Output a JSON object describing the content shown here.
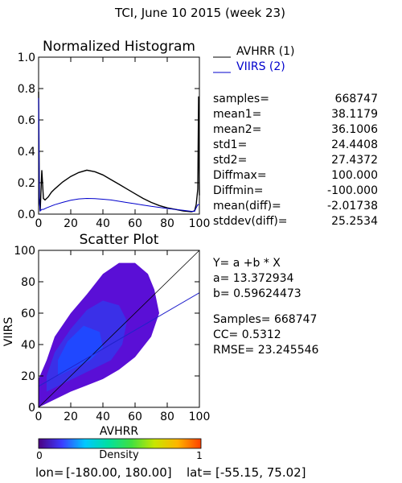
{
  "page_title": "TCI,  June 10 2015 (week 23)",
  "footer": {
    "lon_label": "lon=",
    "lon_range": "[-180.00, 180.00]",
    "lat_label": "lat=",
    "lat_range": "[-55.15, 75.02]"
  },
  "colors": {
    "avhrr": "#000000",
    "viirs": "#0000cc",
    "one_to_one": "#000000",
    "fit_line": "#2222cc"
  },
  "stats": [
    {
      "key": "samples=",
      "value": "668747"
    },
    {
      "key": "mean1=",
      "value": "38.1179"
    },
    {
      "key": "mean2=",
      "value": "36.1006"
    },
    {
      "key": "std1=",
      "value": "24.4408"
    },
    {
      "key": "std2=",
      "value": "27.4372"
    },
    {
      "key": "Diffmax=",
      "value": "100.000"
    },
    {
      "key": "Diffmin=",
      "value": "-100.000"
    },
    {
      "key": "mean(diff)=",
      "value": "-2.01738"
    },
    {
      "key": "stddev(diff)=",
      "value": "25.2534"
    }
  ],
  "regression": {
    "equation": "Y= a +b * X",
    "a": "a= 13.372934",
    "b": "b= 0.59624473",
    "samples": "Samples= 668747",
    "cc": "CC=  0.5312",
    "rmse": "RMSE= 23.245546"
  },
  "colorbar": {
    "label": "Density",
    "min_label": "0",
    "max_label": "1",
    "colors": [
      "#4b0082",
      "#3c3cff",
      "#00c8ff",
      "#00e0a0",
      "#40e040",
      "#c8e600",
      "#ffb400",
      "#ff4000"
    ]
  },
  "chart_data": [
    {
      "type": "line",
      "title": "Normalized Histogram",
      "xlim": [
        0,
        100
      ],
      "ylim": [
        0,
        1
      ],
      "xticks": [
        "0",
        "20",
        "40",
        "60",
        "80",
        "100"
      ],
      "yticks": [
        "0.0",
        "0.2",
        "0.4",
        "0.6",
        "0.8",
        "1.0"
      ],
      "legend_position": "right",
      "series": [
        {
          "name": "AVHRR (1)",
          "color": "#000000",
          "x": [
            0,
            0.5,
            1,
            2,
            3,
            4,
            6,
            8,
            10,
            15,
            20,
            25,
            30,
            35,
            40,
            45,
            50,
            55,
            60,
            65,
            70,
            75,
            80,
            85,
            90,
            95,
            97,
            98,
            99,
            99.5,
            100
          ],
          "y": [
            0.78,
            0.1,
            0.02,
            0.28,
            0.1,
            0.09,
            0.11,
            0.14,
            0.16,
            0.205,
            0.24,
            0.265,
            0.28,
            0.27,
            0.25,
            0.22,
            0.19,
            0.16,
            0.13,
            0.1,
            0.075,
            0.055,
            0.04,
            0.03,
            0.02,
            0.015,
            0.02,
            0.06,
            0.16,
            0.75,
            0.12
          ]
        },
        {
          "name": "VIIRS (2)",
          "color": "#0000cc",
          "x": [
            0,
            0.5,
            1,
            2,
            3,
            5,
            10,
            15,
            20,
            25,
            30,
            35,
            40,
            45,
            50,
            55,
            60,
            65,
            70,
            75,
            80,
            85,
            90,
            95,
            97,
            98,
            99,
            99.5,
            100
          ],
          "y": [
            0.74,
            0.08,
            0.02,
            0.03,
            0.03,
            0.04,
            0.06,
            0.075,
            0.088,
            0.097,
            0.1,
            0.099,
            0.095,
            0.09,
            0.082,
            0.074,
            0.066,
            0.058,
            0.05,
            0.043,
            0.036,
            0.03,
            0.024,
            0.018,
            0.018,
            0.04,
            0.06,
            0.06,
            0.06
          ]
        }
      ]
    },
    {
      "type": "scatter",
      "title": "Scatter Plot",
      "xlabel": "AVHRR",
      "ylabel": "VIIRS",
      "xlim": [
        0,
        100
      ],
      "ylim": [
        0,
        100
      ],
      "xticks": [
        "0",
        "20",
        "40",
        "60",
        "80",
        "100"
      ],
      "yticks": [
        "0",
        "20",
        "40",
        "60",
        "80",
        "100"
      ],
      "density_clusters": [
        {
          "level": "low",
          "x": [
            0,
            10,
            20,
            30,
            40,
            50,
            60,
            70,
            75,
            72,
            68,
            60,
            50,
            40,
            30,
            20,
            10,
            5,
            0,
            0
          ],
          "y": [
            0,
            5,
            10,
            14,
            18,
            24,
            32,
            45,
            60,
            75,
            85,
            92,
            92,
            85,
            72,
            60,
            45,
            30,
            18,
            0
          ]
        },
        {
          "level": "mid",
          "x": [
            5,
            15,
            25,
            35,
            45,
            52,
            55,
            50,
            40,
            30,
            20,
            10,
            5
          ],
          "y": [
            10,
            15,
            20,
            25,
            30,
            40,
            55,
            65,
            68,
            62,
            50,
            35,
            20
          ]
        },
        {
          "level": "high",
          "x": [
            12,
            22,
            32,
            40,
            38,
            28,
            18,
            12
          ],
          "y": [
            20,
            25,
            30,
            38,
            48,
            52,
            42,
            30
          ]
        }
      ],
      "one_to_one_line": {
        "x": [
          0,
          100
        ],
        "y": [
          0,
          100
        ]
      },
      "fit_line": {
        "intercept": 13.372934,
        "slope": 0.59624473
      }
    }
  ]
}
